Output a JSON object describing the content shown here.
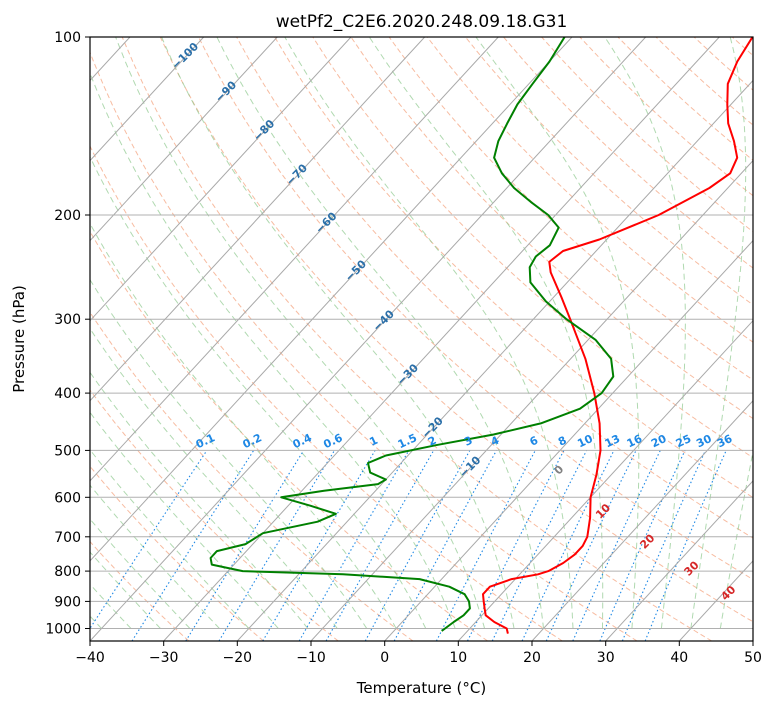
{
  "chart_data": {
    "type": "line",
    "chart_kind": "skew-T log-P diagram",
    "title": "wetPf2_C2E6.2020.248.09.18.G31",
    "xlabel": "Temperature (°C)",
    "ylabel": "Pressure (hPa)",
    "xlim": [
      -40,
      50
    ],
    "ylim": [
      1050,
      100
    ],
    "y_scale": "log",
    "grid": true,
    "x_ticks": [
      "−40",
      "−30",
      "−20",
      "−10",
      "0",
      "10",
      "20",
      "30",
      "40",
      "50"
    ],
    "y_ticks": [
      "100",
      "200",
      "300",
      "400",
      "500",
      "600",
      "700",
      "800",
      "900",
      "1000"
    ],
    "series": [
      {
        "color": "#ff0000",
        "points": [
          {
            "p": 1020,
            "t": 15.8
          },
          {
            "p": 1000,
            "t": 15.0
          },
          {
            "p": 975,
            "t": 12.5
          },
          {
            "p": 950,
            "t": 10.5
          },
          {
            "p": 925,
            "t": 9.5
          },
          {
            "p": 900,
            "t": 8.5
          },
          {
            "p": 875,
            "t": 7.5
          },
          {
            "p": 850,
            "t": 7.5
          },
          {
            "p": 825,
            "t": 9.5
          },
          {
            "p": 810,
            "t": 12.5
          },
          {
            "p": 800,
            "t": 13.5
          },
          {
            "p": 775,
            "t": 14.5
          },
          {
            "p": 750,
            "t": 15.0
          },
          {
            "p": 725,
            "t": 15.0
          },
          {
            "p": 700,
            "t": 14.5
          },
          {
            "p": 650,
            "t": 12.5
          },
          {
            "p": 600,
            "t": 10.0
          },
          {
            "p": 550,
            "t": 8.0
          },
          {
            "p": 500,
            "t": 5.5
          },
          {
            "p": 450,
            "t": 2.0
          },
          {
            "p": 400,
            "t": -2.5
          },
          {
            "p": 350,
            "t": -8.0
          },
          {
            "p": 300,
            "t": -15.0
          },
          {
            "p": 275,
            "t": -19.0
          },
          {
            "p": 250,
            "t": -23.5
          },
          {
            "p": 240,
            "t": -25.0
          },
          {
            "p": 230,
            "t": -24.5
          },
          {
            "p": 220,
            "t": -21.0
          },
          {
            "p": 200,
            "t": -16.0
          },
          {
            "p": 180,
            "t": -12.5
          },
          {
            "p": 170,
            "t": -11.5
          },
          {
            "p": 160,
            "t": -12.5
          },
          {
            "p": 150,
            "t": -15.0
          },
          {
            "p": 140,
            "t": -18.0
          },
          {
            "p": 130,
            "t": -20.5
          },
          {
            "p": 120,
            "t": -23.0
          },
          {
            "p": 110,
            "t": -24.5
          },
          {
            "p": 100,
            "t": -25.5
          }
        ]
      },
      {
        "color": "#008000",
        "points": [
          {
            "p": 1010,
            "t": 6.5
          },
          {
            "p": 975,
            "t": 7.0
          },
          {
            "p": 950,
            "t": 7.5
          },
          {
            "p": 925,
            "t": 7.5
          },
          {
            "p": 900,
            "t": 6.5
          },
          {
            "p": 875,
            "t": 5.0
          },
          {
            "p": 850,
            "t": 2.0
          },
          {
            "p": 825,
            "t": -3.0
          },
          {
            "p": 810,
            "t": -14.0
          },
          {
            "p": 800,
            "t": -28.0
          },
          {
            "p": 780,
            "t": -33.0
          },
          {
            "p": 760,
            "t": -34.0
          },
          {
            "p": 740,
            "t": -34.0
          },
          {
            "p": 720,
            "t": -31.0
          },
          {
            "p": 690,
            "t": -30.0
          },
          {
            "p": 660,
            "t": -24.0
          },
          {
            "p": 640,
            "t": -22.5
          },
          {
            "p": 620,
            "t": -27.0
          },
          {
            "p": 600,
            "t": -32.0
          },
          {
            "p": 585,
            "t": -27.0
          },
          {
            "p": 570,
            "t": -20.5
          },
          {
            "p": 560,
            "t": -20.0
          },
          {
            "p": 545,
            "t": -23.0
          },
          {
            "p": 525,
            "t": -24.5
          },
          {
            "p": 510,
            "t": -23.0
          },
          {
            "p": 490,
            "t": -17.5
          },
          {
            "p": 470,
            "t": -11.0
          },
          {
            "p": 450,
            "t": -6.0
          },
          {
            "p": 425,
            "t": -2.5
          },
          {
            "p": 400,
            "t": -1.5
          },
          {
            "p": 375,
            "t": -2.0
          },
          {
            "p": 350,
            "t": -4.5
          },
          {
            "p": 325,
            "t": -9.0
          },
          {
            "p": 300,
            "t": -15.5
          },
          {
            "p": 280,
            "t": -20.5
          },
          {
            "p": 260,
            "t": -25.0
          },
          {
            "p": 245,
            "t": -27.0
          },
          {
            "p": 235,
            "t": -27.5
          },
          {
            "p": 225,
            "t": -27.0
          },
          {
            "p": 210,
            "t": -28.0
          },
          {
            "p": 200,
            "t": -31.0
          },
          {
            "p": 190,
            "t": -35.0
          },
          {
            "p": 180,
            "t": -39.0
          },
          {
            "p": 170,
            "t": -42.5
          },
          {
            "p": 160,
            "t": -45.5
          },
          {
            "p": 150,
            "t": -47.0
          },
          {
            "p": 140,
            "t": -48.0
          },
          {
            "p": 130,
            "t": -49.0
          },
          {
            "p": 120,
            "t": -49.5
          },
          {
            "p": 110,
            "t": -50.0
          },
          {
            "p": 100,
            "t": -51.0
          }
        ]
      }
    ],
    "isotherm_labels": [
      "−100",
      "−90",
      "−80",
      "−70",
      "−60",
      "−50",
      "−40",
      "−30",
      "−20",
      "−10"
    ],
    "mixing_ratio_labels": [
      "0.1",
      "0.2",
      "0.4",
      "0.6",
      "1",
      "1.5",
      "2",
      "3",
      "4",
      "6",
      "8",
      "10",
      "13",
      "16",
      "20",
      "25",
      "30",
      "36"
    ],
    "moist_adiabat_labels": [
      "0",
      "10",
      "20",
      "30",
      "40"
    ],
    "colors": {
      "temperature": "#ff0000",
      "dewpoint": "#008000",
      "isotherm_label": "#2b6fa8",
      "mixing_ratio": "#1e88e5",
      "moist_label": "#d62728",
      "dry_adiabat": "#f4a582",
      "moist_adiabat": "#8fc98f",
      "grid": "#b0b0b0"
    }
  }
}
